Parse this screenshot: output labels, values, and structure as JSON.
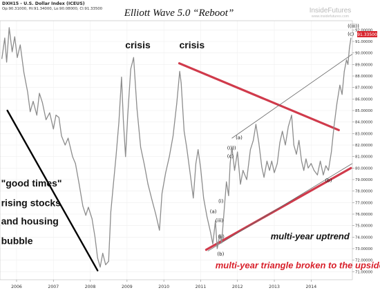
{
  "header": {
    "symbol_line": "DXH15 - U.S. Dollar Index (ICEUS)",
    "ohlc_line": "Op:90.31000, Hi:91.34000, Lo:90.08000, Cl:91.33500"
  },
  "logo": {
    "name": "InsideFutures",
    "url_text": "www.insidefutures.com"
  },
  "current_price_badge": "91.33500",
  "colors": {
    "price_line": "#8c8c8c",
    "triangle_lines": "#d03a4b",
    "bubble_trendline": "#000000",
    "upper_channel": "#666666",
    "label_text": "#111111",
    "annotation_red": "#d81f2a",
    "badge_bg": "#d8262f"
  },
  "chart_data": {
    "type": "line",
    "title": "Elliott Wave 5.0 “Reboot”",
    "xlabel": "",
    "ylabel": "",
    "x_ticks": [
      "2006",
      "2007",
      "2008",
      "2009",
      "2010",
      "2011",
      "2012",
      "2013",
      "2014"
    ],
    "y_ticks": [
      "71.00000",
      "72.00000",
      "73.00000",
      "74.00000",
      "75.00000",
      "76.00000",
      "77.00000",
      "78.00000",
      "79.00000",
      "80.00000",
      "81.00000",
      "82.00000",
      "83.00000",
      "84.00000",
      "85.00000",
      "86.00000",
      "87.00000",
      "88.00000",
      "89.00000",
      "90.00000",
      "91.00000",
      "92.00000"
    ],
    "xlim": [
      2005.55,
      2015.12
    ],
    "ylim": [
      70.3,
      92.8
    ],
    "grid": true,
    "series": [
      {
        "values": [
          [
            2005.6,
            89.5
          ],
          [
            2005.68,
            91.3
          ],
          [
            2005.73,
            89.2
          ],
          [
            2005.8,
            92.2
          ],
          [
            2005.88,
            90.1
          ],
          [
            2005.95,
            91.4
          ],
          [
            2006.02,
            89.6
          ],
          [
            2006.1,
            90.7
          ],
          [
            2006.2,
            88.3
          ],
          [
            2006.3,
            86.6
          ],
          [
            2006.37,
            84.9
          ],
          [
            2006.45,
            85.8
          ],
          [
            2006.55,
            84.6
          ],
          [
            2006.62,
            86.5
          ],
          [
            2006.7,
            85.7
          ],
          [
            2006.8,
            84.2
          ],
          [
            2006.9,
            84.8
          ],
          [
            2007.0,
            83.4
          ],
          [
            2007.07,
            84.6
          ],
          [
            2007.15,
            84.4
          ],
          [
            2007.22,
            82.8
          ],
          [
            2007.32,
            82.0
          ],
          [
            2007.4,
            82.6
          ],
          [
            2007.52,
            81.0
          ],
          [
            2007.6,
            80.4
          ],
          [
            2007.7,
            78.6
          ],
          [
            2007.8,
            76.7
          ],
          [
            2007.88,
            75.9
          ],
          [
            2007.95,
            76.6
          ],
          [
            2008.05,
            75.6
          ],
          [
            2008.13,
            74.0
          ],
          [
            2008.2,
            72.2
          ],
          [
            2008.27,
            71.4
          ],
          [
            2008.34,
            72.6
          ],
          [
            2008.42,
            71.6
          ],
          [
            2008.5,
            71.9
          ],
          [
            2008.56,
            76.2
          ],
          [
            2008.63,
            78.6
          ],
          [
            2008.7,
            81.0
          ],
          [
            2008.78,
            84.0
          ],
          [
            2008.85,
            87.9
          ],
          [
            2008.9,
            84.2
          ],
          [
            2008.96,
            81.0
          ],
          [
            2009.02,
            84.6
          ],
          [
            2009.1,
            88.6
          ],
          [
            2009.18,
            89.6
          ],
          [
            2009.27,
            85.2
          ],
          [
            2009.37,
            81.8
          ],
          [
            2009.47,
            80.3
          ],
          [
            2009.57,
            78.6
          ],
          [
            2009.68,
            77.2
          ],
          [
            2009.78,
            76.0
          ],
          [
            2009.88,
            74.6
          ],
          [
            2009.95,
            77.8
          ],
          [
            2010.05,
            79.6
          ],
          [
            2010.15,
            81.0
          ],
          [
            2010.25,
            82.8
          ],
          [
            2010.35,
            85.6
          ],
          [
            2010.43,
            88.4
          ],
          [
            2010.47,
            87.4
          ],
          [
            2010.55,
            83.2
          ],
          [
            2010.62,
            81.8
          ],
          [
            2010.72,
            79.4
          ],
          [
            2010.8,
            77.4
          ],
          [
            2010.87,
            80.4
          ],
          [
            2010.93,
            81.6
          ],
          [
            2011.0,
            80.0
          ],
          [
            2011.08,
            77.4
          ],
          [
            2011.17,
            75.8
          ],
          [
            2011.27,
            74.4
          ],
          [
            2011.33,
            73.4
          ],
          [
            2011.4,
            75.4
          ],
          [
            2011.45,
            73.0
          ],
          [
            2011.52,
            74.2
          ],
          [
            2011.57,
            73.5
          ],
          [
            2011.63,
            76.0
          ],
          [
            2011.7,
            78.8
          ],
          [
            2011.76,
            77.6
          ],
          [
            2011.8,
            80.4
          ],
          [
            2011.85,
            81.8
          ],
          [
            2011.92,
            79.8
          ],
          [
            2012.0,
            81.4
          ],
          [
            2012.08,
            78.6
          ],
          [
            2012.15,
            79.8
          ],
          [
            2012.25,
            79.0
          ],
          [
            2012.35,
            81.6
          ],
          [
            2012.43,
            82.4
          ],
          [
            2012.5,
            83.8
          ],
          [
            2012.58,
            82.2
          ],
          [
            2012.66,
            80.1
          ],
          [
            2012.72,
            79.2
          ],
          [
            2012.8,
            80.6
          ],
          [
            2012.87,
            79.8
          ],
          [
            2012.93,
            80.6
          ],
          [
            2013.0,
            79.6
          ],
          [
            2013.08,
            80.4
          ],
          [
            2013.15,
            82.2
          ],
          [
            2013.22,
            83.2
          ],
          [
            2013.3,
            82.0
          ],
          [
            2013.38,
            83.6
          ],
          [
            2013.47,
            84.6
          ],
          [
            2013.53,
            82.0
          ],
          [
            2013.6,
            81.2
          ],
          [
            2013.67,
            82.4
          ],
          [
            2013.74,
            80.6
          ],
          [
            2013.8,
            79.8
          ],
          [
            2013.86,
            80.8
          ],
          [
            2013.92,
            80.0
          ],
          [
            2014.0,
            80.4
          ],
          [
            2014.08,
            79.8
          ],
          [
            2014.17,
            79.4
          ],
          [
            2014.25,
            80.6
          ],
          [
            2014.33,
            79.4
          ],
          [
            2014.4,
            80.2
          ],
          [
            2014.47,
            79.8
          ],
          [
            2014.55,
            81.4
          ],
          [
            2014.62,
            83.6
          ],
          [
            2014.7,
            85.6
          ],
          [
            2014.78,
            87.2
          ],
          [
            2014.84,
            86.4
          ],
          [
            2014.9,
            88.4
          ],
          [
            2014.96,
            89.4
          ],
          [
            2015.0,
            89.0
          ],
          [
            2015.04,
            90.4
          ],
          [
            2015.08,
            91.3
          ]
        ]
      }
    ],
    "trendlines": [
      {
        "role": "triangle-upper",
        "from": [
          2010.42,
          89.1
        ],
        "to": [
          2014.75,
          83.3
        ]
      },
      {
        "role": "triangle-lower",
        "from": [
          2011.15,
          72.9
        ],
        "to": [
          2015.08,
          80.0
        ]
      },
      {
        "role": "channel-lower",
        "from": [
          2011.2,
          72.8
        ],
        "to": [
          2015.12,
          80.4
        ]
      },
      {
        "role": "channel-upper",
        "from": [
          2011.85,
          82.6
        ],
        "to": [
          2015.12,
          89.9
        ]
      },
      {
        "role": "bubble-decline",
        "from": [
          2005.75,
          85.0
        ],
        "to": [
          2008.2,
          71.1
        ]
      }
    ],
    "annotations": [
      {
        "text": "crisis",
        "x": 2008.95,
        "y": 90.4,
        "style": "bold",
        "color": "#111111",
        "size": 14
      },
      {
        "text": "crisis",
        "x": 2010.42,
        "y": 90.4,
        "style": "bold",
        "color": "#111111",
        "size": 14
      },
      {
        "text": "\"good times\"",
        "x": 2005.58,
        "y": 78.4,
        "style": "bold",
        "color": "#111111",
        "size": 14
      },
      {
        "text": "rising stocks",
        "x": 2005.58,
        "y": 76.7,
        "style": "bold",
        "color": "#111111",
        "size": 14
      },
      {
        "text": "and housing",
        "x": 2005.58,
        "y": 75.1,
        "style": "bold",
        "color": "#111111",
        "size": 14
      },
      {
        "text": "bubble",
        "x": 2005.58,
        "y": 73.4,
        "style": "bold",
        "color": "#111111",
        "size": 14
      },
      {
        "text": "multi-year uptrend",
        "x": 2012.9,
        "y": 73.8,
        "style": "bold-italic",
        "color": "#111111",
        "size": 13
      },
      {
        "text": "multi-year triangle broken to the upside",
        "x": 2011.4,
        "y": 71.3,
        "style": "bold-italic",
        "color": "#d81f2a",
        "size": 13
      },
      {
        "text": "(a)",
        "x": 2011.25,
        "y": 76.1,
        "style": "small",
        "color": "#111111",
        "size": 7
      },
      {
        "text": "(b)",
        "x": 2011.45,
        "y": 72.4,
        "style": "small",
        "color": "#111111",
        "size": 7
      },
      {
        "text": "(ii)",
        "x": 2011.47,
        "y": 73.9,
        "style": "small",
        "color": "#111111",
        "size": 7
      },
      {
        "text": "(iii)",
        "x": 2011.4,
        "y": 75.3,
        "style": "small",
        "color": "#111111",
        "size": 7
      },
      {
        "text": "(i)",
        "x": 2011.48,
        "y": 77.0,
        "style": "small",
        "color": "#111111",
        "size": 7
      },
      {
        "text": "((i))",
        "x": 2011.72,
        "y": 81.6,
        "style": "small",
        "color": "#111111",
        "size": 7
      },
      {
        "text": "(c)",
        "x": 2011.72,
        "y": 80.9,
        "style": "small",
        "color": "#111111",
        "size": 7
      },
      {
        "text": "(a)",
        "x": 2011.95,
        "y": 82.5,
        "style": "small",
        "color": "#111111",
        "size": 7
      },
      {
        "text": "(b)",
        "x": 2014.38,
        "y": 78.8,
        "style": "small",
        "color": "#111111",
        "size": 7
      },
      {
        "text": "((iii))",
        "x": 2014.99,
        "y": 92.2,
        "style": "small",
        "color": "#111111",
        "size": 7
      },
      {
        "text": "(c)",
        "x": 2014.99,
        "y": 91.5,
        "style": "small",
        "color": "#111111",
        "size": 7
      }
    ]
  }
}
